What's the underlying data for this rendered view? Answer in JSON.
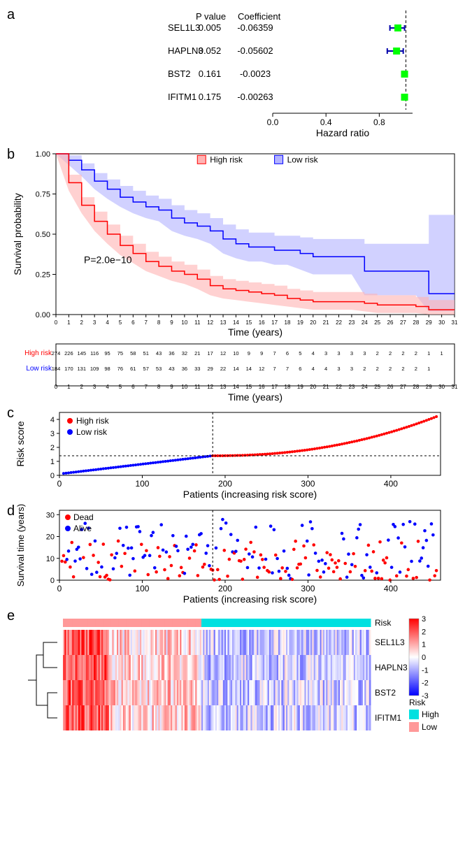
{
  "panel_a": {
    "header_pvalue": "P value",
    "header_coef": "Coefficient",
    "rows": [
      {
        "gene": "SEL1L3",
        "p": "0.005",
        "coef": "-0.06359",
        "hr": 0.94,
        "ci": [
          0.88,
          0.99
        ]
      },
      {
        "gene": "HAPLN3",
        "p": "0.052",
        "coef": "-0.05602",
        "hr": 0.93,
        "ci": [
          0.86,
          0.98
        ]
      },
      {
        "gene": "BST2",
        "p": "0.161",
        "coef": "-0.0023",
        "hr": 0.99,
        "ci": [
          0.97,
          1.01
        ]
      },
      {
        "gene": "IFITM1",
        "p": "0.175",
        "coef": "-0.00263",
        "hr": 0.99,
        "ci": [
          0.97,
          1.01
        ]
      }
    ],
    "xlabel": "Hazard ratio",
    "xticks": [
      0.0,
      0.4,
      0.8
    ],
    "xlim": [
      0,
      1.05
    ],
    "ref": 1.0,
    "marker_color": "#00ff00",
    "ci_color": "#0000aa"
  },
  "panel_b": {
    "legend_high": "High risk",
    "legend_low": "Low risk",
    "color_high": "#ff0000",
    "color_low": "#0000ff",
    "fill_high": "#ffb3b3",
    "fill_low": "#b3b3ff",
    "ylabel": "Survival probability",
    "xlabel": "Time (years)",
    "pvalue": "P=2.0e−10",
    "xlim": [
      0,
      31
    ],
    "ylim": [
      0,
      1
    ],
    "yticks": [
      0.0,
      0.25,
      0.5,
      0.75,
      1.0
    ],
    "xticks": [
      0,
      1,
      2,
      3,
      4,
      5,
      6,
      7,
      8,
      9,
      10,
      11,
      12,
      13,
      14,
      15,
      16,
      17,
      18,
      19,
      20,
      21,
      22,
      23,
      24,
      25,
      26,
      27,
      28,
      29,
      30,
      31
    ],
    "high_line": [
      [
        0,
        1.0
      ],
      [
        1,
        0.82
      ],
      [
        2,
        0.68
      ],
      [
        3,
        0.58
      ],
      [
        4,
        0.5
      ],
      [
        5,
        0.43
      ],
      [
        6,
        0.38
      ],
      [
        7,
        0.33
      ],
      [
        8,
        0.3
      ],
      [
        9,
        0.27
      ],
      [
        10,
        0.25
      ],
      [
        11,
        0.22
      ],
      [
        12,
        0.18
      ],
      [
        13,
        0.16
      ],
      [
        14,
        0.15
      ],
      [
        15,
        0.14
      ],
      [
        16,
        0.13
      ],
      [
        17,
        0.12
      ],
      [
        18,
        0.1
      ],
      [
        19,
        0.09
      ],
      [
        20,
        0.08
      ],
      [
        21,
        0.08
      ],
      [
        22,
        0.08
      ],
      [
        23,
        0.08
      ],
      [
        24,
        0.07
      ],
      [
        25,
        0.06
      ],
      [
        26,
        0.06
      ],
      [
        27,
        0.06
      ],
      [
        28,
        0.05
      ],
      [
        29,
        0.03
      ],
      [
        30,
        0.03
      ],
      [
        31,
        0.03
      ]
    ],
    "high_upper": [
      [
        0,
        1.0
      ],
      [
        1,
        0.87
      ],
      [
        2,
        0.73
      ],
      [
        3,
        0.64
      ],
      [
        4,
        0.56
      ],
      [
        5,
        0.49
      ],
      [
        6,
        0.44
      ],
      [
        7,
        0.39
      ],
      [
        8,
        0.36
      ],
      [
        9,
        0.33
      ],
      [
        10,
        0.31
      ],
      [
        11,
        0.28
      ],
      [
        12,
        0.24
      ],
      [
        13,
        0.22
      ],
      [
        14,
        0.21
      ],
      [
        15,
        0.2
      ],
      [
        16,
        0.19
      ],
      [
        17,
        0.18
      ],
      [
        18,
        0.16
      ],
      [
        19,
        0.15
      ],
      [
        20,
        0.14
      ],
      [
        21,
        0.14
      ],
      [
        22,
        0.14
      ],
      [
        23,
        0.14
      ],
      [
        24,
        0.13
      ],
      [
        25,
        0.12
      ],
      [
        26,
        0.12
      ],
      [
        27,
        0.12
      ],
      [
        28,
        0.11
      ],
      [
        29,
        0.09
      ],
      [
        30,
        0.09
      ],
      [
        31,
        0.09
      ]
    ],
    "high_lower": [
      [
        0,
        1.0
      ],
      [
        1,
        0.77
      ],
      [
        2,
        0.63
      ],
      [
        3,
        0.52
      ],
      [
        4,
        0.44
      ],
      [
        5,
        0.37
      ],
      [
        6,
        0.32
      ],
      [
        7,
        0.27
      ],
      [
        8,
        0.24
      ],
      [
        9,
        0.21
      ],
      [
        10,
        0.19
      ],
      [
        11,
        0.16
      ],
      [
        12,
        0.12
      ],
      [
        13,
        0.1
      ],
      [
        14,
        0.09
      ],
      [
        15,
        0.08
      ],
      [
        16,
        0.07
      ],
      [
        17,
        0.06
      ],
      [
        18,
        0.05
      ],
      [
        19,
        0.04
      ],
      [
        20,
        0.03
      ],
      [
        21,
        0.03
      ],
      [
        22,
        0.03
      ],
      [
        23,
        0.03
      ],
      [
        24,
        0.02
      ],
      [
        25,
        0.01
      ],
      [
        26,
        0.01
      ],
      [
        27,
        0.01
      ],
      [
        28,
        0.01
      ],
      [
        29,
        0.0
      ],
      [
        30,
        0.0
      ],
      [
        31,
        0.0
      ]
    ],
    "low_line": [
      [
        0,
        1.0
      ],
      [
        1,
        0.96
      ],
      [
        2,
        0.9
      ],
      [
        3,
        0.83
      ],
      [
        4,
        0.78
      ],
      [
        5,
        0.73
      ],
      [
        6,
        0.7
      ],
      [
        7,
        0.67
      ],
      [
        8,
        0.65
      ],
      [
        9,
        0.6
      ],
      [
        10,
        0.57
      ],
      [
        11,
        0.55
      ],
      [
        12,
        0.52
      ],
      [
        13,
        0.47
      ],
      [
        14,
        0.44
      ],
      [
        15,
        0.42
      ],
      [
        16,
        0.42
      ],
      [
        17,
        0.4
      ],
      [
        18,
        0.4
      ],
      [
        19,
        0.38
      ],
      [
        20,
        0.36
      ],
      [
        21,
        0.36
      ],
      [
        22,
        0.36
      ],
      [
        23,
        0.36
      ],
      [
        24,
        0.27
      ],
      [
        25,
        0.27
      ],
      [
        26,
        0.27
      ],
      [
        27,
        0.27
      ],
      [
        28,
        0.27
      ],
      [
        29,
        0.13
      ],
      [
        30,
        0.13
      ],
      [
        31,
        0.13
      ]
    ],
    "low_upper": [
      [
        0,
        1.0
      ],
      [
        1,
        0.99
      ],
      [
        2,
        0.94
      ],
      [
        3,
        0.88
      ],
      [
        4,
        0.84
      ],
      [
        5,
        0.8
      ],
      [
        6,
        0.77
      ],
      [
        7,
        0.74
      ],
      [
        8,
        0.72
      ],
      [
        9,
        0.68
      ],
      [
        10,
        0.65
      ],
      [
        11,
        0.63
      ],
      [
        12,
        0.6
      ],
      [
        13,
        0.56
      ],
      [
        14,
        0.53
      ],
      [
        15,
        0.51
      ],
      [
        16,
        0.51
      ],
      [
        17,
        0.49
      ],
      [
        18,
        0.49
      ],
      [
        19,
        0.48
      ],
      [
        20,
        0.47
      ],
      [
        21,
        0.47
      ],
      [
        22,
        0.47
      ],
      [
        23,
        0.47
      ],
      [
        24,
        0.44
      ],
      [
        25,
        0.44
      ],
      [
        26,
        0.44
      ],
      [
        27,
        0.44
      ],
      [
        28,
        0.44
      ],
      [
        29,
        0.62
      ],
      [
        30,
        0.62
      ],
      [
        31,
        0.62
      ]
    ],
    "low_lower": [
      [
        0,
        1.0
      ],
      [
        1,
        0.93
      ],
      [
        2,
        0.86
      ],
      [
        3,
        0.78
      ],
      [
        4,
        0.72
      ],
      [
        5,
        0.67
      ],
      [
        6,
        0.63
      ],
      [
        7,
        0.6
      ],
      [
        8,
        0.58
      ],
      [
        9,
        0.52
      ],
      [
        10,
        0.49
      ],
      [
        11,
        0.47
      ],
      [
        12,
        0.44
      ],
      [
        13,
        0.38
      ],
      [
        14,
        0.35
      ],
      [
        15,
        0.33
      ],
      [
        16,
        0.33
      ],
      [
        17,
        0.31
      ],
      [
        18,
        0.31
      ],
      [
        19,
        0.28
      ],
      [
        20,
        0.25
      ],
      [
        21,
        0.25
      ],
      [
        22,
        0.25
      ],
      [
        23,
        0.25
      ],
      [
        24,
        0.12
      ],
      [
        25,
        0.12
      ],
      [
        26,
        0.12
      ],
      [
        27,
        0.12
      ],
      [
        28,
        0.12
      ],
      [
        29,
        0.02
      ],
      [
        30,
        0.02
      ],
      [
        31,
        0.02
      ]
    ],
    "risk_table": {
      "labels": [
        "High risk",
        "Low risk"
      ],
      "colors": [
        "#ff0000",
        "#0000ff"
      ],
      "high": [
        274,
        226,
        145,
        116,
        95,
        75,
        58,
        51,
        43,
        36,
        32,
        21,
        17,
        12,
        10,
        9,
        9,
        7,
        6,
        5,
        4,
        3,
        3,
        3,
        3,
        2,
        2,
        2,
        2,
        1,
        1
      ],
      "low": [
        184,
        170,
        131,
        109,
        98,
        76,
        61,
        57,
        53,
        43,
        36,
        33,
        29,
        22,
        14,
        14,
        12,
        7,
        7,
        6,
        4,
        4,
        3,
        3,
        2,
        2,
        2,
        2,
        2,
        1,
        ""
      ]
    }
  },
  "panel_c": {
    "ylabel": "Risk score",
    "xlabel": "Patients (increasing risk score)",
    "legend_high": "High risk",
    "legend_low": "Low risk",
    "color_high": "#ff0000",
    "color_low": "#0000ff",
    "xlim": [
      0,
      460
    ],
    "ylim": [
      0,
      4.5
    ],
    "yticks": [
      0,
      1,
      2,
      3,
      4
    ],
    "xticks": [
      0,
      100,
      200,
      300,
      400
    ],
    "cut_x": 185,
    "cut_y": 1.4
  },
  "panel_d": {
    "ylabel": "Survival time (years)",
    "xlabel": "Patients (increasing risk score)",
    "legend_dead": "Dead",
    "legend_alive": "Alive",
    "color_dead": "#ff0000",
    "color_alive": "#0000ff",
    "xlim": [
      0,
      460
    ],
    "ylim": [
      0,
      32
    ],
    "yticks": [
      0,
      10,
      20,
      30
    ],
    "xticks": [
      0,
      100,
      200,
      300,
      400
    ],
    "cut_x": 185
  },
  "panel_e": {
    "genes": [
      "SEL1L3",
      "HAPLN3",
      "BST2",
      "IFITM1"
    ],
    "risk_label": "Risk",
    "legend_title": "Risk",
    "legend_high": "High",
    "legend_low": "Low",
    "color_low": "#ff9999",
    "color_high": "#00e0e0",
    "scale_label": "",
    "scale_ticks": [
      3,
      2,
      1,
      0,
      -1,
      -2,
      -3
    ],
    "scale_colors": [
      "#ff0000",
      "#ffffff",
      "#0000ff"
    ]
  }
}
